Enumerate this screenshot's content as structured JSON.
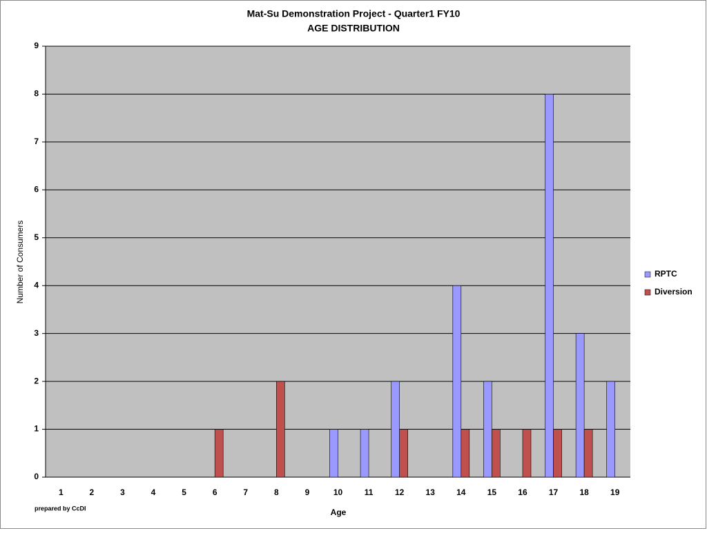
{
  "chart_data": {
    "type": "bar",
    "title": "Mat-Su Demonstration Project - Quarter1 FY10",
    "subtitle": "AGE DISTRIBUTION",
    "x_label": "Age",
    "y_label": "Number of Consumers",
    "footnote": "prepared by CcDI",
    "categories": [
      "1",
      "2",
      "3",
      "4",
      "5",
      "6",
      "7",
      "8",
      "9",
      "10",
      "11",
      "12",
      "13",
      "14",
      "15",
      "16",
      "17",
      "18",
      "19"
    ],
    "series": [
      {
        "name": "RPTC",
        "color": "#9999ff",
        "values": [
          0,
          0,
          0,
          0,
          0,
          0,
          0,
          0,
          0,
          1,
          1,
          2,
          0,
          4,
          2,
          0,
          8,
          3,
          2
        ]
      },
      {
        "name": "Diversion",
        "color": "#c0504d",
        "values": [
          0,
          0,
          0,
          0,
          0,
          1,
          0,
          2,
          0,
          0,
          0,
          1,
          0,
          1,
          1,
          1,
          1,
          1,
          0
        ]
      }
    ],
    "ylim": [
      0,
      9
    ],
    "yticks": [
      0,
      1,
      2,
      3,
      4,
      5,
      6,
      7,
      8,
      9
    ],
    "grid": true,
    "legend": "right"
  }
}
